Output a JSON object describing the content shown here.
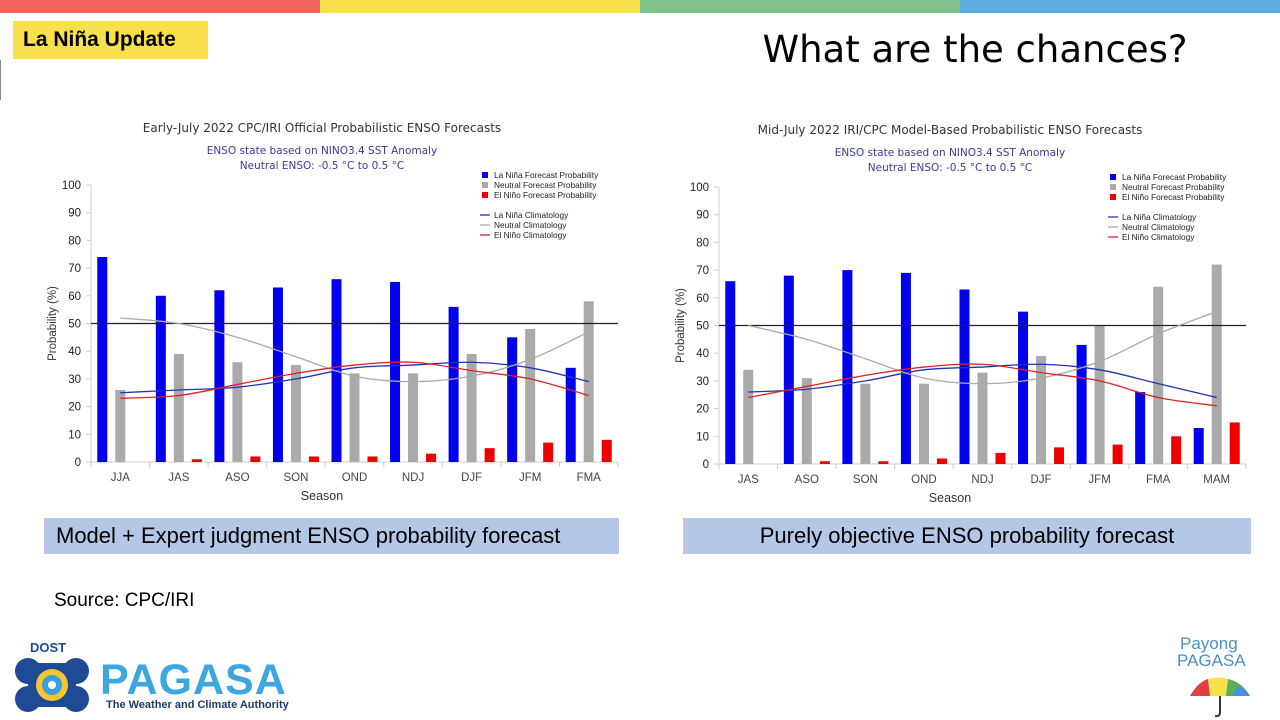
{
  "slide": {
    "tag": "La Niña Update",
    "title": "What are the chances?",
    "source": "Source: CPC/IRI",
    "caption_left": "Model + Expert judgment ENSO probability forecast",
    "caption_right": "Purely objective ENSO probability forecast",
    "colors": {
      "stripe": [
        "#f0645a",
        "#f7e04b",
        "#7fc28b",
        "#5aaee0"
      ],
      "tag_bg": "#f7e04b",
      "caption_bg": "#b4c7e7"
    }
  },
  "logos": {
    "dost": "DOST",
    "pagasa": "PAGASA",
    "pagasa_tagline": "The Weather and Climate Authority",
    "payong_line1": "Payong",
    "payong_line2": "PAGASA"
  },
  "chart_data": [
    {
      "type": "bar",
      "title": "Early-July 2022 CPC/IRI Official Probabilistic ENSO Forecasts",
      "subtitle1": "ENSO state based on NINO3.4 SST Anomaly",
      "subtitle2": "Neutral ENSO: -0.5 °C to 0.5 °C",
      "xlabel": "Season",
      "ylabel": "Probability (%)",
      "ylim": [
        0,
        100
      ],
      "yticks": [
        0,
        10,
        20,
        30,
        40,
        50,
        60,
        70,
        80,
        90,
        100
      ],
      "reference_line": 50,
      "legend_position": "top-right",
      "categories": [
        "JJA",
        "JAS",
        "ASO",
        "SON",
        "OND",
        "NDJ",
        "DJF",
        "JFM",
        "FMA"
      ],
      "series": [
        {
          "name": "La Niña Forecast Probability",
          "color": "#0000ee",
          "values": [
            74,
            60,
            62,
            63,
            66,
            65,
            56,
            45,
            34
          ]
        },
        {
          "name": "Neutral Forecast Probability",
          "color": "#aaaaaa",
          "values": [
            26,
            39,
            36,
            35,
            32,
            32,
            39,
            48,
            58
          ]
        },
        {
          "name": "El Niño Forecast Probability",
          "color": "#ee0000",
          "values": [
            0,
            1,
            2,
            2,
            2,
            3,
            5,
            7,
            8
          ]
        }
      ],
      "lines": [
        {
          "name": "La Niña Climatology",
          "color": "#2233bb",
          "values": [
            25,
            26,
            27,
            30,
            34,
            35,
            36,
            34,
            29
          ]
        },
        {
          "name": "Neutral Climatology",
          "color": "#aaaaaa",
          "values": [
            52,
            50,
            45,
            38,
            31,
            29,
            31,
            37,
            47
          ]
        },
        {
          "name": "El Niño Climatology",
          "color": "#dd2222",
          "values": [
            23,
            24,
            28,
            32,
            35,
            36,
            33,
            30,
            24
          ]
        }
      ]
    },
    {
      "type": "bar",
      "title": "Mid-July 2022 IRI/CPC Model-Based Probabilistic ENSO Forecasts",
      "subtitle1": "ENSO state based on NINO3.4 SST Anomaly",
      "subtitle2": "Neutral ENSO: -0.5 °C to 0.5 °C",
      "xlabel": "Season",
      "ylabel": "Probability (%)",
      "ylim": [
        0,
        100
      ],
      "yticks": [
        0,
        10,
        20,
        30,
        40,
        50,
        60,
        70,
        80,
        90,
        100
      ],
      "reference_line": 50,
      "legend_position": "top-right",
      "categories": [
        "JAS",
        "ASO",
        "SON",
        "OND",
        "NDJ",
        "DJF",
        "JFM",
        "FMA",
        "MAM"
      ],
      "series": [
        {
          "name": "La Niña Forecast Probability",
          "color": "#0000ee",
          "values": [
            66,
            68,
            70,
            69,
            63,
            55,
            43,
            26,
            13
          ]
        },
        {
          "name": "Neutral Forecast Probability",
          "color": "#aaaaaa",
          "values": [
            34,
            31,
            29,
            29,
            33,
            39,
            50,
            64,
            72
          ]
        },
        {
          "name": "El Niño Forecast Probability",
          "color": "#ee0000",
          "values": [
            0,
            1,
            1,
            2,
            4,
            6,
            7,
            10,
            15
          ]
        }
      ],
      "lines": [
        {
          "name": "La Niña Climatology",
          "color": "#2233bb",
          "values": [
            26,
            27,
            30,
            34,
            35,
            36,
            34,
            29,
            24
          ]
        },
        {
          "name": "Neutral Climatology",
          "color": "#aaaaaa",
          "values": [
            50,
            45,
            38,
            31,
            29,
            31,
            37,
            47,
            55
          ]
        },
        {
          "name": "El Niño Climatology",
          "color": "#dd2222",
          "values": [
            24,
            28,
            32,
            35,
            36,
            33,
            30,
            24,
            21
          ]
        }
      ]
    }
  ]
}
